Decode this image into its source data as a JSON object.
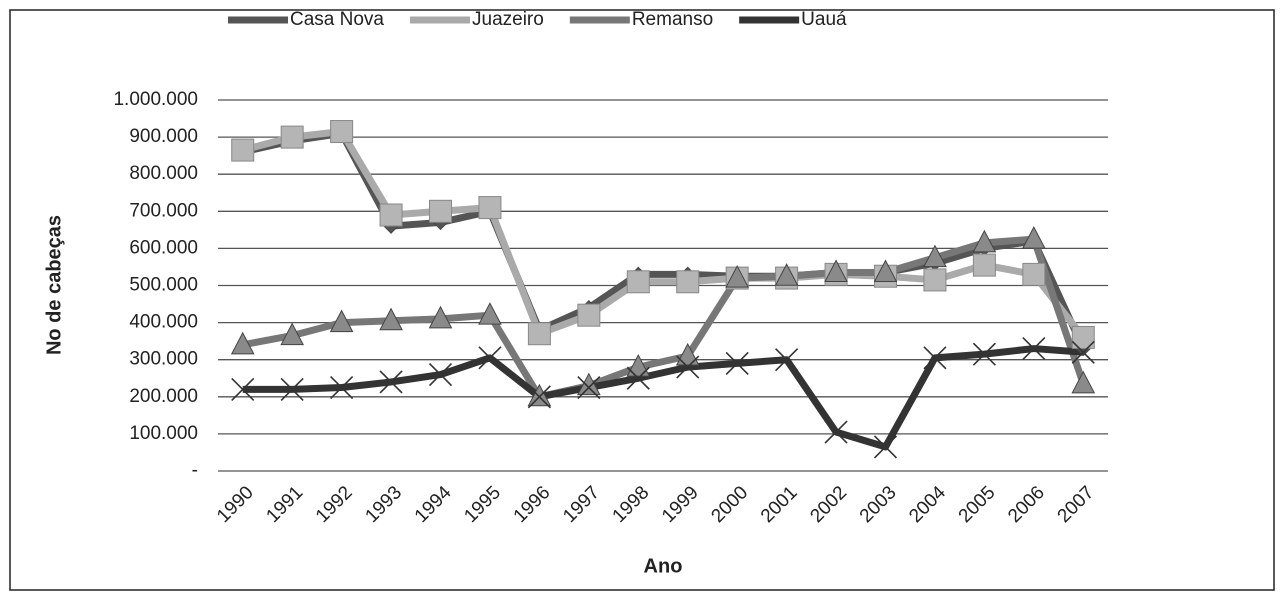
{
  "chart_data": {
    "type": "line",
    "categories": [
      "1990",
      "1991",
      "1992",
      "1993",
      "1994",
      "1995",
      "1996",
      "1997",
      "1998",
      "1999",
      "2000",
      "2001",
      "2002",
      "2003",
      "2004",
      "2005",
      "2006",
      "2007"
    ],
    "series": [
      {
        "name": "Casa Nova",
        "color": "#555555",
        "marker": "diamond",
        "values": [
          860000,
          890000,
          910000,
          660000,
          670000,
          700000,
          380000,
          440000,
          530000,
          530000,
          525000,
          525000,
          535000,
          535000,
          560000,
          600000,
          620000,
          330000
        ]
      },
      {
        "name": "Juazeiro",
        "color": "#aaaaaa",
        "marker": "square",
        "values": [
          865000,
          900000,
          915000,
          690000,
          700000,
          710000,
          370000,
          420000,
          510000,
          510000,
          520000,
          520000,
          530000,
          525000,
          515000,
          555000,
          530000,
          360000
        ]
      },
      {
        "name": "Remanso",
        "color": "#777777",
        "marker": "triangle",
        "values": [
          340000,
          365000,
          400000,
          405000,
          410000,
          420000,
          200000,
          230000,
          280000,
          310000,
          520000,
          525000,
          535000,
          535000,
          575000,
          615000,
          625000,
          235000
        ]
      },
      {
        "name": "Uauá",
        "color": "#333333",
        "marker": "x",
        "values": [
          220000,
          220000,
          225000,
          240000,
          260000,
          305000,
          200000,
          225000,
          250000,
          280000,
          290000,
          300000,
          105000,
          65000,
          305000,
          315000,
          330000,
          320000
        ]
      }
    ],
    "ylabel": "No de cabeças",
    "xlabel": "Ano",
    "ylim": [
      0,
      1000000
    ],
    "yticks": [
      {
        "value": 0,
        "label": "-"
      },
      {
        "value": 100000,
        "label": "100.000"
      },
      {
        "value": 200000,
        "label": "200.000"
      },
      {
        "value": 300000,
        "label": "300.000"
      },
      {
        "value": 400000,
        "label": "400.000"
      },
      {
        "value": 500000,
        "label": "500.000"
      },
      {
        "value": 600000,
        "label": "600.000"
      },
      {
        "value": 700000,
        "label": "700.000"
      },
      {
        "value": 800000,
        "label": "800.000"
      },
      {
        "value": 900000,
        "label": "900.000"
      },
      {
        "value": 1000000,
        "label": "1.000.000"
      }
    ],
    "grid": true,
    "legend": "top"
  }
}
